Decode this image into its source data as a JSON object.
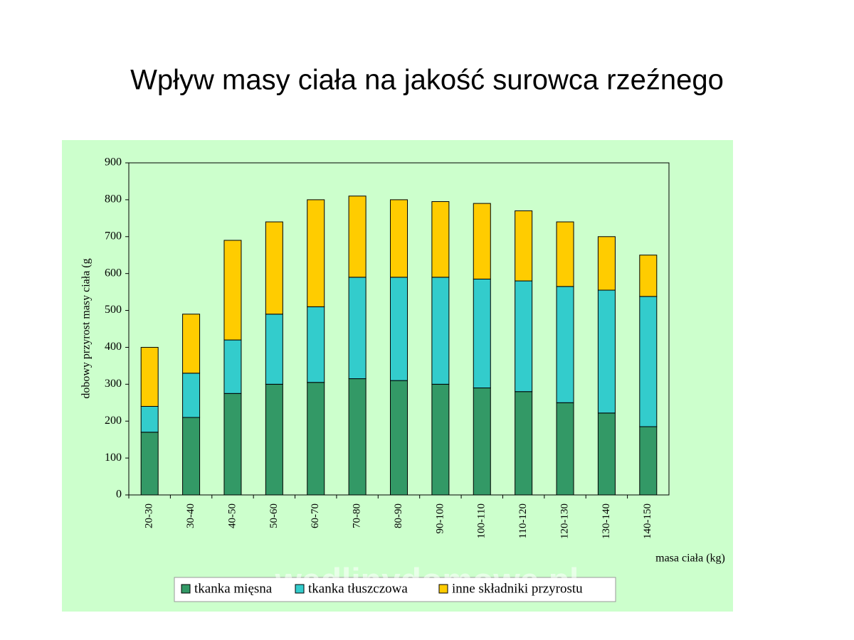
{
  "chart_data": {
    "type": "stacked_bar",
    "title": "Wpływ masy ciała na jakość surowca rzeźnego",
    "y_label": "dobowy przyrost masy ciała (g",
    "x_label": "masa ciała (kg)",
    "watermark": "wedlinydomowe.pl",
    "categories": [
      "20-30",
      "30-40",
      "40-50",
      "50-60",
      "60-70",
      "70-80",
      "80-90",
      "90-100",
      "100-110",
      "110-120",
      "120-130",
      "130-140",
      "140-150"
    ],
    "series": [
      {
        "name": "tkanka mięsna",
        "color": "#339966",
        "values": [
          170,
          210,
          275,
          300,
          305,
          315,
          310,
          300,
          290,
          280,
          250,
          222,
          185
        ]
      },
      {
        "name": "tkanka tłuszczowa",
        "color": "#33cccc",
        "values": [
          70,
          120,
          145,
          190,
          205,
          275,
          280,
          290,
          295,
          300,
          315,
          333,
          353
        ]
      },
      {
        "name": "inne składniki przyrostu",
        "color": "#ffcc00",
        "values": [
          160,
          160,
          270,
          250,
          290,
          220,
          210,
          205,
          205,
          190,
          175,
          145,
          112
        ]
      }
    ],
    "ylim": [
      0,
      900
    ],
    "yticks": [
      0,
      100,
      200,
      300,
      400,
      500,
      600,
      700,
      800,
      900
    ]
  }
}
